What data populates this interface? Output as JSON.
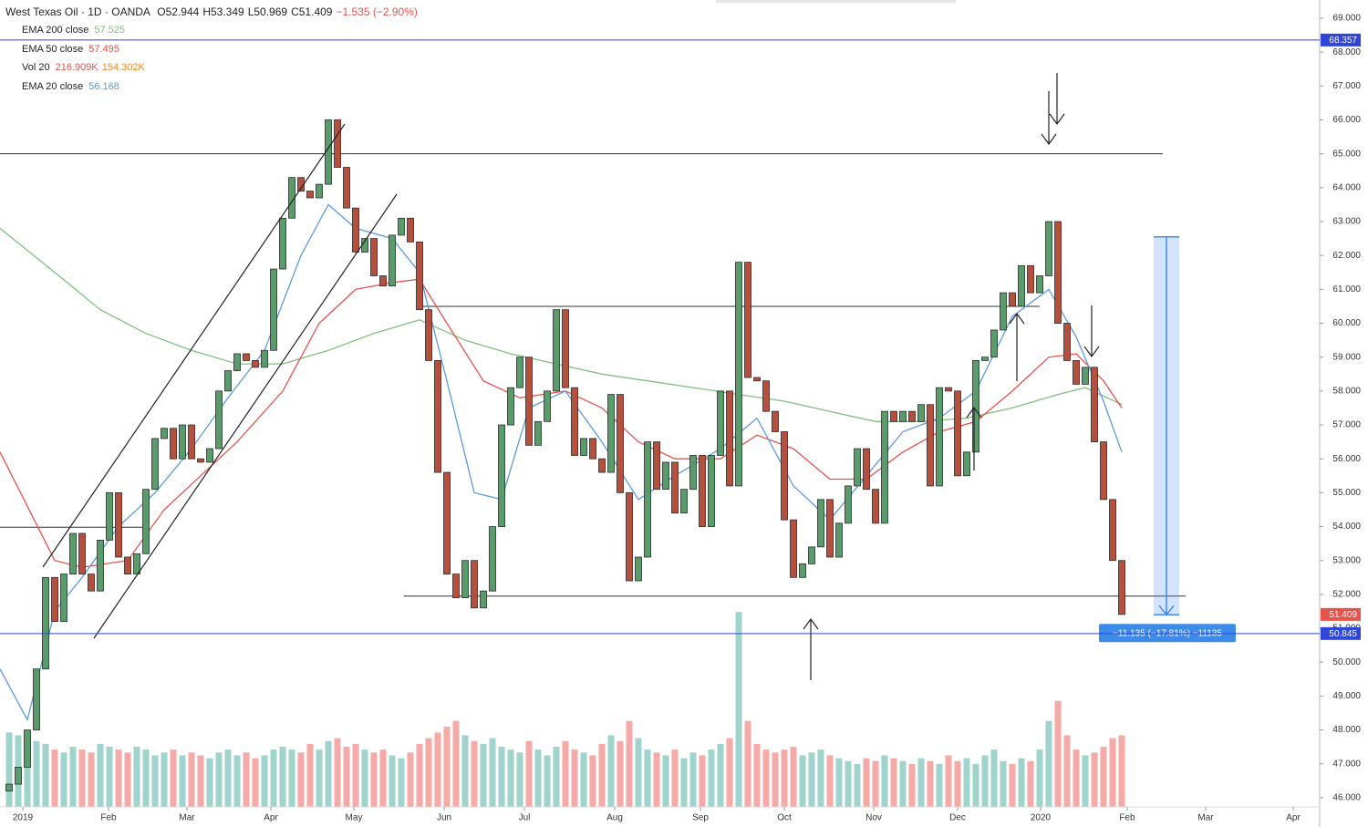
{
  "chart_data": {
    "type": "candlestick",
    "title": "West Texas Oil · 1D · OANDA",
    "ohlc_labels": [
      "O52.944",
      "H53.349",
      "L50.969",
      "C51.409",
      "−1.535 (−2.90%)"
    ],
    "ylim": [
      45.5,
      69.5
    ],
    "yticks": [
      {
        "value": 46,
        "label": "46.000"
      },
      {
        "value": 47,
        "label": "47.000"
      },
      {
        "value": 48,
        "label": "48.000"
      },
      {
        "value": 49,
        "label": "49.000"
      },
      {
        "value": 50,
        "label": "50.000"
      },
      {
        "value": 51,
        "label": "51.000"
      },
      {
        "value": 52,
        "label": "52.000"
      },
      {
        "value": 53,
        "label": "53.000"
      },
      {
        "value": 54,
        "label": "54.000"
      },
      {
        "value": 55,
        "label": "55.000"
      },
      {
        "value": 56,
        "label": "56.000"
      },
      {
        "value": 57,
        "label": "57.000"
      },
      {
        "value": 58,
        "label": "58.000"
      },
      {
        "value": 59,
        "label": "59.000"
      },
      {
        "value": 60,
        "label": "60.000"
      },
      {
        "value": 61,
        "label": "61.000"
      },
      {
        "value": 62,
        "label": "62.000"
      },
      {
        "value": 63,
        "label": "63.000"
      },
      {
        "value": 64,
        "label": "64.000"
      },
      {
        "value": 65,
        "label": "65.000"
      },
      {
        "value": 66,
        "label": "66.000"
      },
      {
        "value": 67,
        "label": "67.000"
      },
      {
        "value": 68,
        "label": "68.000"
      },
      {
        "value": 69,
        "label": "69.000"
      }
    ],
    "xlim": [
      -1,
      143.7
    ],
    "xticks": [
      {
        "value": 1.5,
        "label": "2019"
      },
      {
        "value": 10.9,
        "label": "Feb"
      },
      {
        "value": 19.5,
        "label": "Mar"
      },
      {
        "value": 28.7,
        "label": "Apr"
      },
      {
        "value": 37.8,
        "label": "May"
      },
      {
        "value": 47.7,
        "label": "Jun"
      },
      {
        "value": 56.5,
        "label": "Jul"
      },
      {
        "value": 66.4,
        "label": "Aug"
      },
      {
        "value": 75.8,
        "label": "Sep"
      },
      {
        "value": 85,
        "label": "Oct"
      },
      {
        "value": 94.8,
        "label": "Nov"
      },
      {
        "value": 104,
        "label": "Dec"
      },
      {
        "value": 113.1,
        "label": "2020"
      },
      {
        "value": 122.6,
        "label": "Feb"
      },
      {
        "value": 131.2,
        "label": "Mar"
      },
      {
        "value": 140.8,
        "label": "Apr"
      }
    ],
    "up_color": "#5a9b6b",
    "down_color": "#b5503f",
    "open": [
      46.2,
      46.4,
      46.9,
      48,
      49.8,
      52.5,
      51.2,
      52.6,
      53.8,
      52.6,
      52.1,
      53.6,
      55,
      53.1,
      52.6,
      53.2,
      55.1,
      56.6,
      56.9,
      56,
      57,
      56,
      55.9,
      56.3,
      58,
      58.6,
      59.1,
      58.9,
      58.7,
      59.2,
      61.6,
      63.1,
      64.3,
      63.9,
      63.7,
      64.1,
      66,
      64.6,
      63.4,
      62.1,
      62.5,
      61.4,
      61.1,
      62.6,
      63.1,
      62.4,
      60.4,
      58.9,
      55.6,
      52.6,
      51.9,
      53,
      51.6,
      52.1,
      54,
      57,
      58.1,
      59,
      56.4,
      57.1,
      58,
      60.4,
      58.1,
      56.1,
      56.6,
      56,
      55.6,
      57.9,
      55,
      52.4,
      53.1,
      56.5,
      55.1,
      55.9,
      54.4,
      55.1,
      56.1,
      54,
      56.1,
      58,
      55.2,
      61.8,
      58.4,
      58.3,
      57.4,
      56.8,
      54.2,
      52.5,
      52.9,
      53.4,
      54.8,
      53.1,
      54.1,
      55.2,
      56.3,
      55.1,
      54.1,
      57.4,
      57.1,
      57.4,
      57.1,
      57.6,
      55.2,
      58.1,
      58,
      55.5,
      56.2,
      58.9,
      59,
      59.8,
      60.9,
      60.5,
      61.7,
      60.9,
      61.4,
      63,
      60,
      58.9,
      58.2,
      58.7,
      56.5,
      54.8,
      53
    ],
    "close": [
      46.4,
      46.9,
      48,
      49.8,
      52.5,
      51.2,
      52.6,
      53.8,
      52.6,
      52.1,
      53.6,
      55,
      53.1,
      52.6,
      53.2,
      55.1,
      56.6,
      56.9,
      56,
      57,
      56,
      55.9,
      56.3,
      58,
      58.6,
      59.1,
      58.9,
      58.7,
      59.2,
      61.6,
      63.1,
      64.3,
      63.9,
      63.7,
      64.1,
      66,
      64.6,
      63.4,
      62.1,
      62.5,
      61.4,
      61.1,
      62.6,
      63.1,
      62.4,
      60.4,
      58.9,
      55.6,
      52.6,
      51.9,
      53,
      51.6,
      52.1,
      54,
      57,
      58.1,
      59,
      56.4,
      57.1,
      58,
      60.4,
      58.1,
      56.1,
      56.6,
      56,
      55.6,
      57.9,
      55,
      52.4,
      53.1,
      56.5,
      55.1,
      55.9,
      54.4,
      55.1,
      56.1,
      54,
      56.1,
      58,
      55.2,
      61.8,
      58.4,
      58.3,
      57.4,
      56.8,
      54.2,
      52.5,
      52.9,
      53.4,
      54.8,
      53.1,
      54.1,
      55.2,
      56.3,
      55.1,
      54.1,
      57.4,
      57.1,
      57.4,
      57.1,
      57.6,
      55.2,
      58.1,
      58,
      55.5,
      56.2,
      58.9,
      59,
      59.8,
      60.9,
      60.5,
      61.7,
      60.9,
      61.4,
      63,
      60,
      58.9,
      58.2,
      58.7,
      56.5,
      54.8,
      53,
      51.409
    ],
    "volume": [
      260,
      250,
      240,
      230,
      220,
      200,
      190,
      210,
      200,
      190,
      220,
      210,
      200,
      190,
      210,
      200,
      180,
      190,
      200,
      180,
      190,
      180,
      170,
      190,
      200,
      180,
      190,
      170,
      180,
      200,
      210,
      200,
      190,
      220,
      200,
      230,
      240,
      210,
      220,
      200,
      190,
      200,
      180,
      170,
      190,
      220,
      240,
      260,
      280,
      300,
      250,
      230,
      220,
      240,
      210,
      200,
      190,
      230,
      200,
      180,
      210,
      230,
      200,
      190,
      180,
      220,
      250,
      230,
      300,
      240,
      200,
      190,
      180,
      200,
      170,
      190,
      180,
      200,
      220,
      240,
      680,
      300,
      220,
      200,
      190,
      200,
      210,
      180,
      190,
      200,
      180,
      170,
      160,
      150,
      170,
      160,
      180,
      170,
      160,
      150,
      170,
      160,
      150,
      180,
      160,
      170,
      150,
      180,
      200,
      160,
      150,
      170,
      160,
      200,
      300,
      370,
      250,
      200,
      180,
      190,
      210,
      240,
      250
    ],
    "vlim": [
      0,
      700
    ],
    "volume_up_color": "#9fd3cb",
    "volume_down_color": "#f5aaa8",
    "volume_legend": {
      "name": "Vol 20",
      "labels": [
        "216.909K",
        "154.302K"
      ]
    },
    "series": [
      {
        "name": "EMA 200 close",
        "last": 57.525,
        "color": "#7fbf7f",
        "x": [
          -1,
          5,
          10,
          15,
          20,
          25,
          30,
          35,
          40,
          45,
          50,
          55,
          60,
          65,
          70,
          75,
          80,
          85,
          90,
          95,
          100,
          105,
          110,
          115,
          118,
          122
        ],
        "values": [
          62.8,
          61.5,
          60.4,
          59.7,
          59.2,
          58.8,
          58.8,
          59.2,
          59.7,
          60.1,
          59.5,
          59.1,
          58.8,
          58.5,
          58.3,
          58.1,
          57.9,
          57.7,
          57.4,
          57.1,
          57.1,
          57.2,
          57.5,
          57.9,
          58.1,
          57.6
        ]
      },
      {
        "name": "EMA 50 close",
        "last": 57.495,
        "color": "#e5534b",
        "x": [
          -1,
          5,
          8,
          13,
          17,
          21,
          25,
          30,
          34,
          38,
          42,
          45,
          48,
          52,
          56,
          61,
          65,
          69,
          73,
          78,
          82,
          86,
          90,
          94,
          98,
          102,
          106,
          110,
          114,
          117,
          120,
          122
        ],
        "values": [
          56.2,
          53,
          52.8,
          53,
          54.5,
          55.5,
          56.5,
          58,
          60,
          61,
          61.2,
          61.3,
          60,
          58.3,
          57.8,
          58,
          57.5,
          56.5,
          56,
          56,
          56.7,
          56.3,
          55.4,
          55.4,
          56.2,
          56.8,
          57.1,
          58,
          59,
          59.1,
          58.3,
          57.5
        ]
      },
      {
        "name": "EMA 20 close",
        "last": 56.168,
        "color": "#5b9be0",
        "x": [
          -1,
          2,
          5,
          8,
          12,
          16,
          20,
          24,
          28,
          32,
          35,
          38,
          42,
          45,
          48,
          51,
          54,
          57,
          61,
          65,
          69,
          73,
          78,
          82,
          86,
          90,
          94,
          98,
          102,
          106,
          110,
          114,
          117,
          120,
          122
        ],
        "values": [
          49.8,
          48.3,
          51.5,
          52.5,
          54,
          55,
          56.3,
          57.8,
          59.2,
          62,
          63.5,
          62.8,
          62.5,
          61.5,
          58.3,
          55,
          54.8,
          57.5,
          58,
          56.5,
          54.8,
          55.5,
          56.3,
          57.2,
          55.2,
          54.2,
          55.5,
          56.8,
          57.2,
          58,
          60.2,
          61,
          59.6,
          57.7,
          56.2
        ]
      }
    ],
    "levels": [
      {
        "value": 65,
        "x": [
          -1,
          126.5
        ]
      },
      {
        "value": 60.5,
        "x": [
          45,
          113
        ]
      },
      {
        "value": 51.95,
        "x": [
          43.3,
          129
        ]
      },
      {
        "value": 53.98,
        "x": [
          -1,
          15
        ]
      }
    ],
    "price_tags": [
      {
        "value": 68.357,
        "color": "#2f46d6"
      },
      {
        "value": 51.409,
        "color": "#e5534b"
      },
      {
        "value": 50.845,
        "color": "#2f46d6"
      }
    ],
    "measure": {
      "label": "−11.135 (−17.81%) −11135",
      "from": 62.55,
      "to": 51.4
    }
  }
}
